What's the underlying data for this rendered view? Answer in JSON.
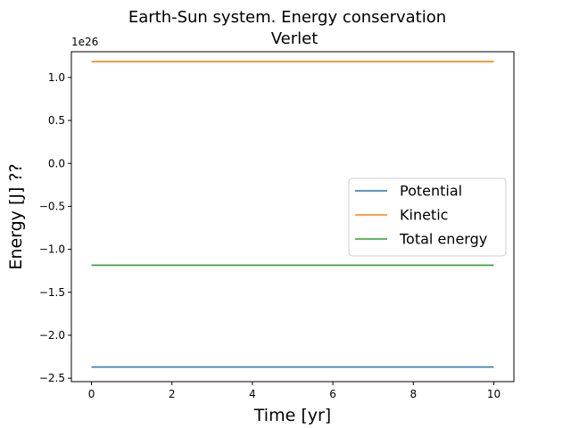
{
  "chart_data": {
    "type": "line",
    "title": "Earth-Sun system. Energy conservation",
    "subtitle": "Verlet",
    "xlabel": "Time [yr]",
    "ylabel": "Energy [J] ??",
    "y_offset_label": "1e26",
    "xlim": [
      -0.5,
      10.5
    ],
    "ylim": [
      -2.54,
      1.3
    ],
    "y_scale": 1e+26,
    "x_ticks": [
      0,
      2,
      4,
      6,
      8,
      10
    ],
    "x_tick_labels": [
      "0",
      "2",
      "4",
      "6",
      "8",
      "10"
    ],
    "y_ticks": [
      1.0,
      0.5,
      0.0,
      -0.5,
      -1.0,
      -1.5,
      -2.0,
      -2.5
    ],
    "y_tick_labels": [
      "1.0",
      "0.5",
      "0.0",
      "−0.5",
      "−1.0",
      "−1.5",
      "−2.0",
      "−2.5"
    ],
    "grid": false,
    "legend_position": "center-right",
    "series": [
      {
        "name": "Potential",
        "color": "#1f77b4",
        "x": [
          0,
          10
        ],
        "values": [
          -2.37,
          -2.37
        ]
      },
      {
        "name": "Kinetic",
        "color": "#ff7f0e",
        "x": [
          0,
          10
        ],
        "values": [
          1.185,
          1.185
        ]
      },
      {
        "name": "Total energy",
        "color": "#2ca02c",
        "x": [
          0,
          10
        ],
        "values": [
          -1.185,
          -1.185
        ]
      }
    ]
  }
}
